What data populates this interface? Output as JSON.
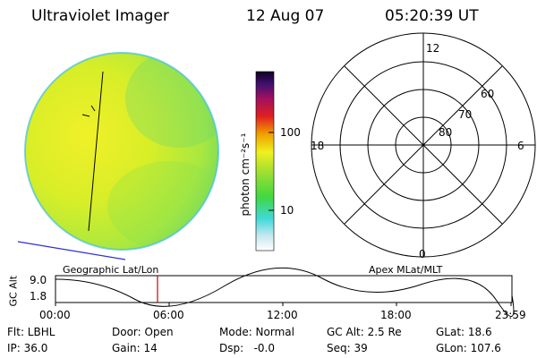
{
  "header": {
    "title": "Ultraviolet Imager",
    "date": "12 Aug 07",
    "time": "05:20:39 UT"
  },
  "colorbar": {
    "unit_label": "photon cm⁻²s⁻¹",
    "ticks": [
      "100",
      "10"
    ]
  },
  "polar": {
    "top": "12",
    "left": "18",
    "right": "6",
    "bottom": "0",
    "rings": [
      "60",
      "70",
      "80"
    ]
  },
  "timeline": {
    "left_label": "Geographic Lat/Lon",
    "right_label": "Apex MLat/MLT",
    "axis_title": "GC Alt",
    "y_top": "9.0",
    "y_bottom": "1.8",
    "ticks": [
      "00:00",
      "06:00",
      "12:00",
      "18:00",
      "23:59"
    ]
  },
  "info": {
    "row1": [
      "Flt: LBHL",
      "Door: Open",
      "Mode: Normal",
      "GC Alt: 2.5 Re",
      "GLat: 18.6"
    ],
    "row2": [
      "IP: 36.0",
      "Gain: 14",
      "Dsp:   -0.0",
      "Seq: 39",
      "GLon: 107.6"
    ]
  },
  "colors": {
    "disk_yellow": "#e8f020",
    "disk_green": "#90e040",
    "cursor": "#cc0000",
    "limb_line": "#3030d0"
  }
}
